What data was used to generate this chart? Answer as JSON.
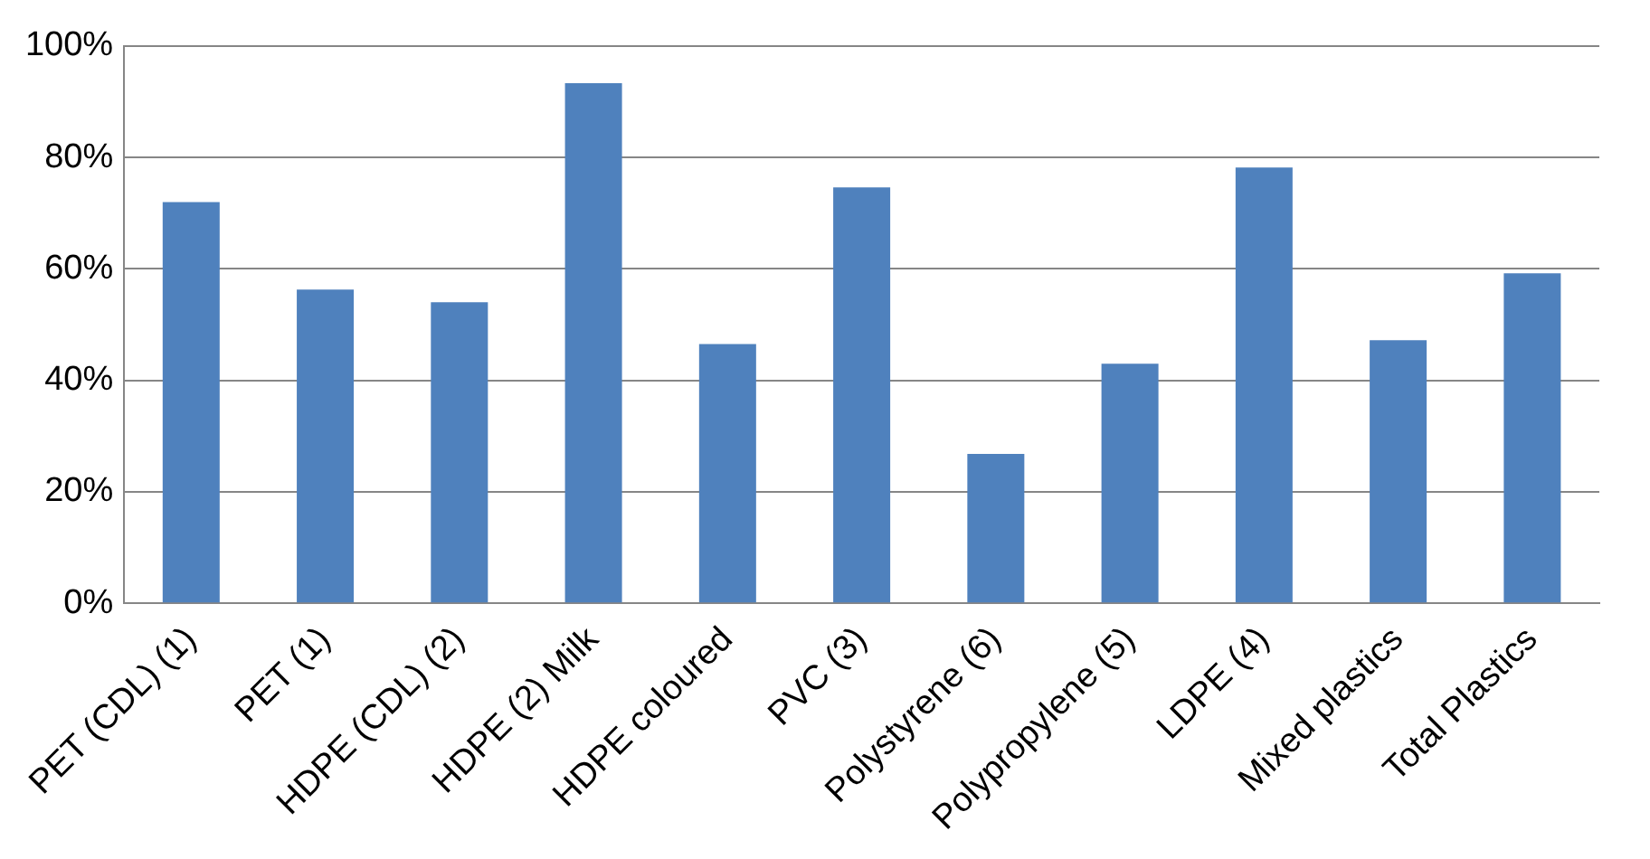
{
  "chart_data": {
    "type": "bar",
    "categories": [
      "PET (CDL) (1)",
      "PET (1)",
      "HDPE (CDL) (2)",
      "HDPE (2) Milk",
      "HDPE coloured",
      "PVC (3)",
      "Polystyrene (6)",
      "Polypropylene (5)",
      "LDPE (4)",
      "Mixed plastics",
      "Total Plastics"
    ],
    "values": [
      72,
      56.3,
      54,
      93.3,
      46.5,
      74.6,
      26.8,
      43,
      78.2,
      47.2,
      59.2
    ],
    "color": "#4f81bd",
    "ylim": [
      0,
      100
    ],
    "yticks": [
      {
        "value": 0,
        "label": "0%"
      },
      {
        "value": 20,
        "label": "20%"
      },
      {
        "value": 40,
        "label": "40%"
      },
      {
        "value": 60,
        "label": "60%"
      },
      {
        "value": 80,
        "label": "80%"
      },
      {
        "value": 100,
        "label": "100%"
      }
    ],
    "grid": "y",
    "legend": false
  }
}
